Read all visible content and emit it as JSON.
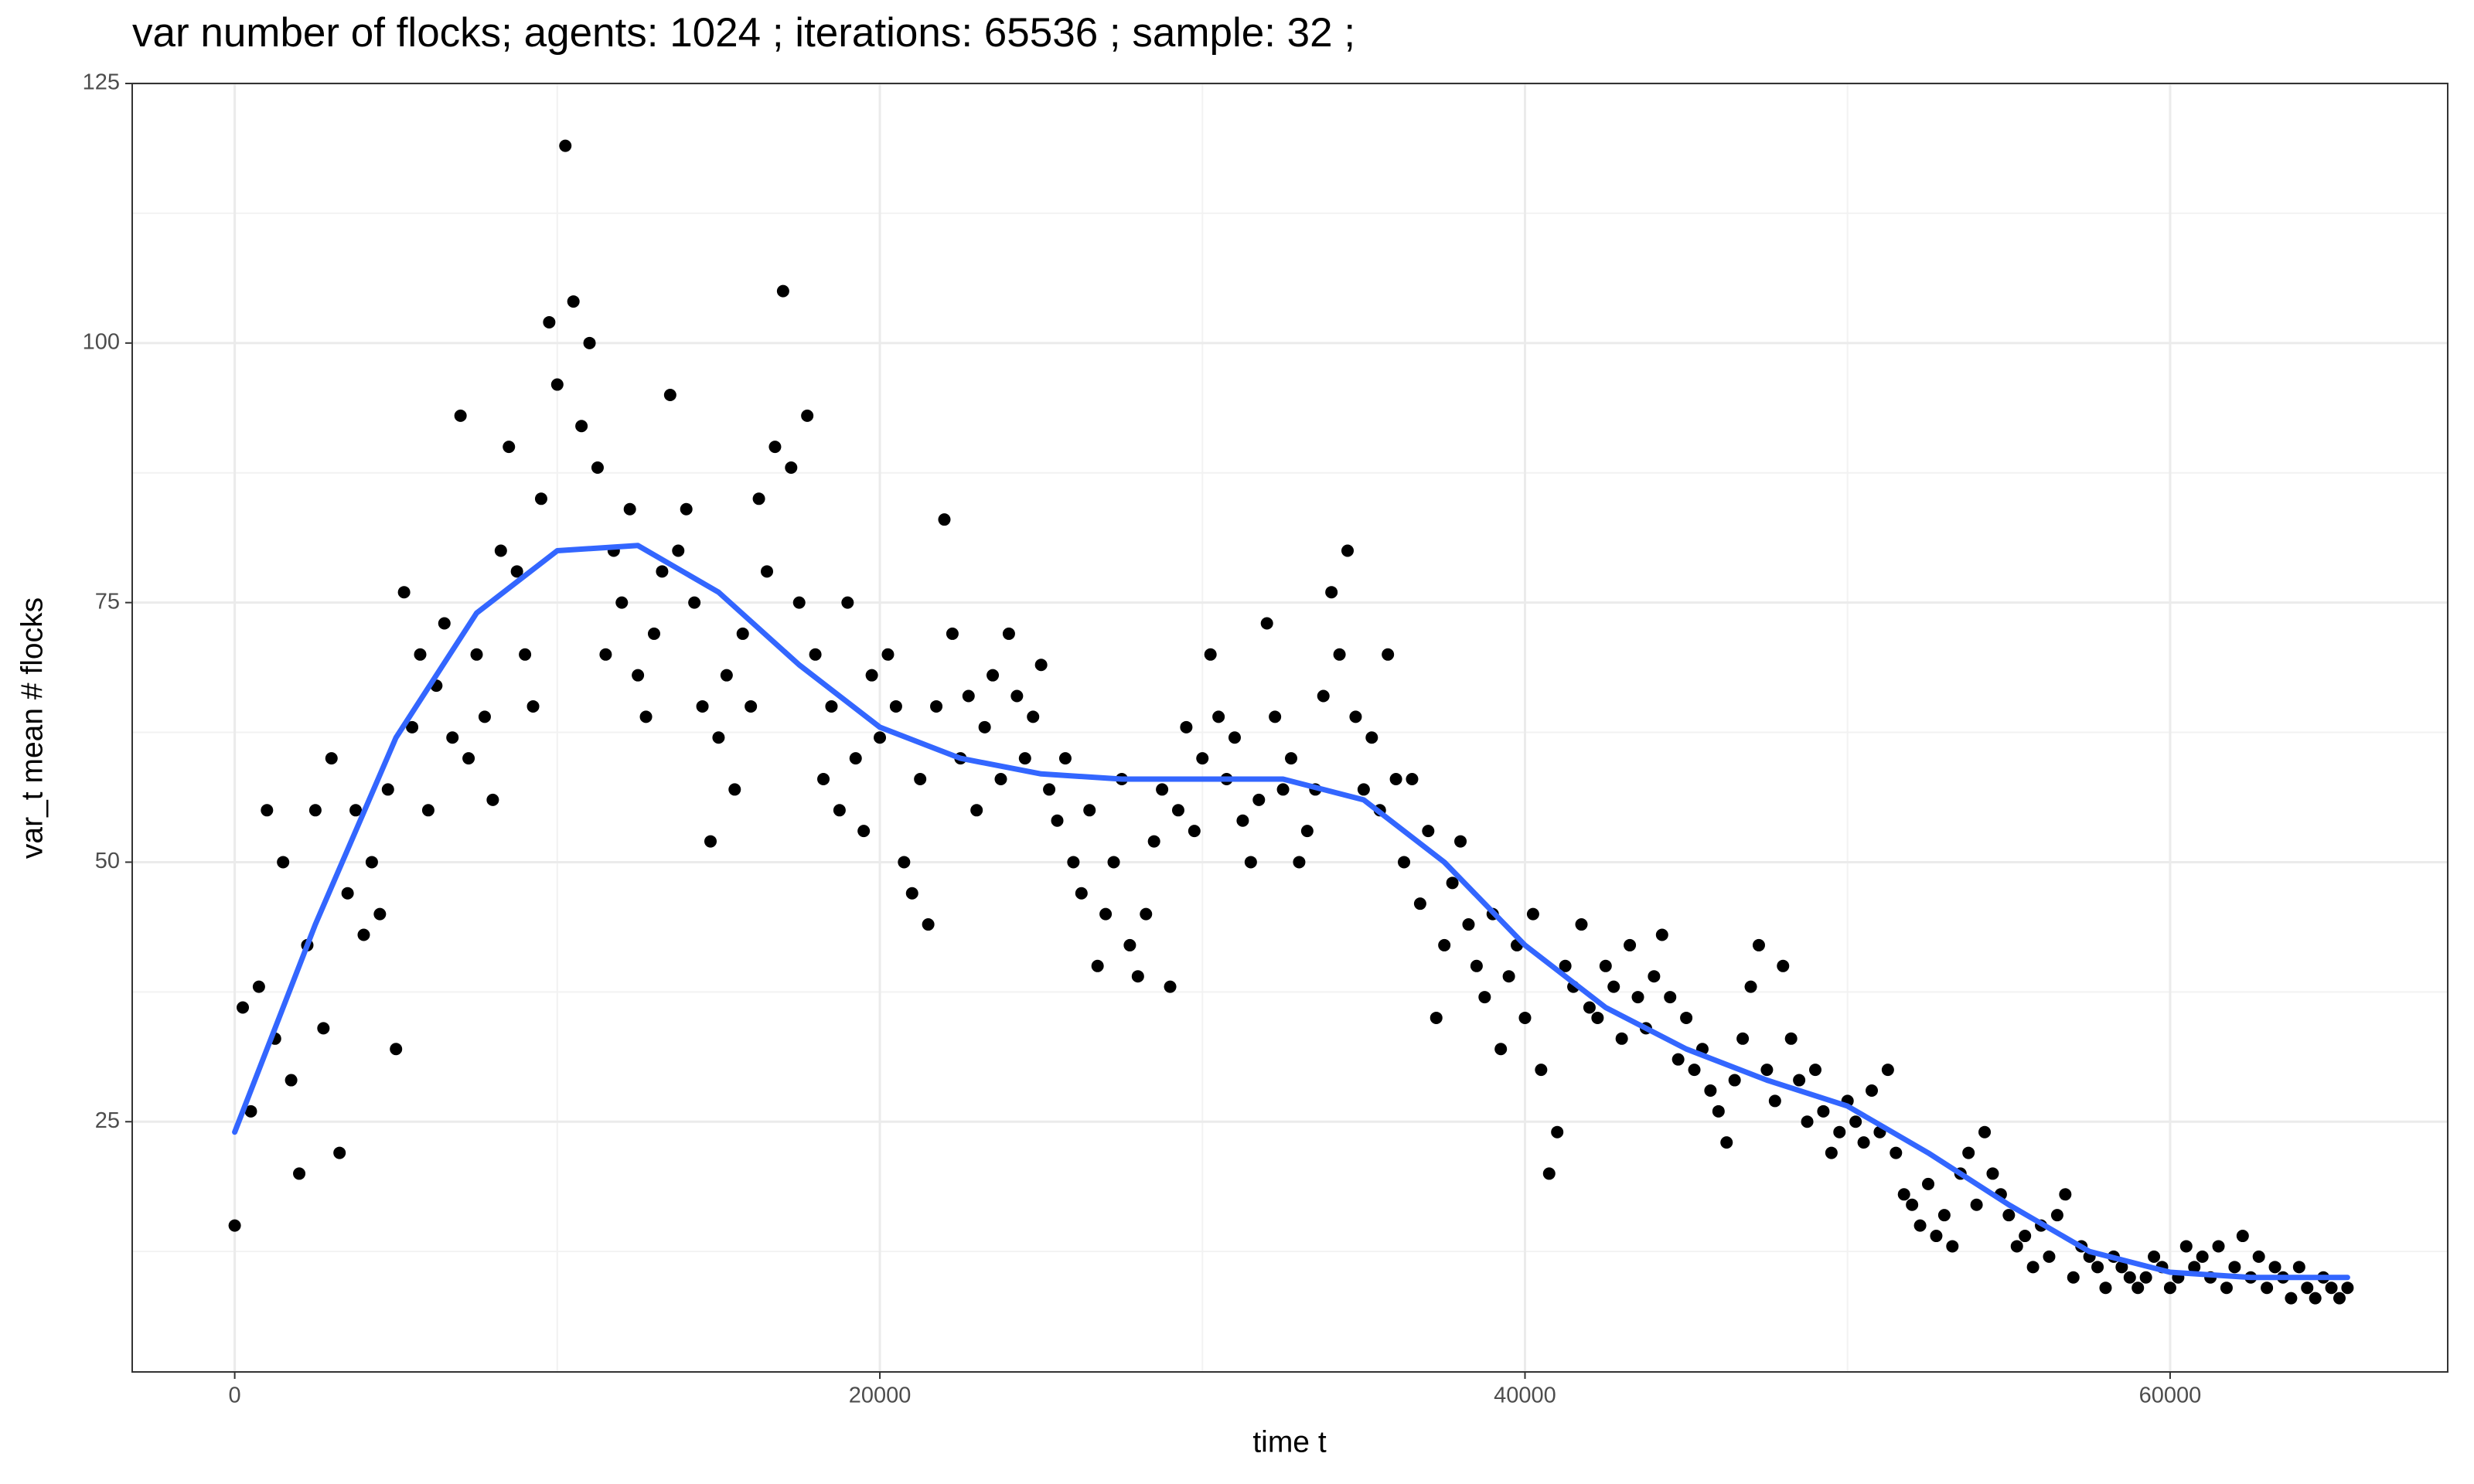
{
  "chart_data": {
    "type": "scatter",
    "title": "var number of flocks; agents: 1024 ; iterations: 65536 ; sample: 32 ;",
    "x_label": "time t",
    "y_label": "var_t mean # flocks",
    "xlim": [
      -3178,
      68606
    ],
    "ylim": [
      0.9,
      125
    ],
    "xticks": [
      0,
      20000,
      40000,
      60000
    ],
    "yticks": [
      25,
      50,
      75,
      100,
      125
    ],
    "x_minor_grid": [
      10000,
      30000,
      50000
    ],
    "y_minor_grid": [
      12.5,
      37.5,
      62.5,
      87.5,
      112.5
    ],
    "grid": true,
    "points": {
      "color": "#000000",
      "x": [
        0,
        250,
        500,
        750,
        1000,
        1250,
        1500,
        1750,
        2000,
        2250,
        2500,
        2750,
        3000,
        3250,
        3500,
        3750,
        4000,
        4250,
        4500,
        4750,
        5000,
        5250,
        5500,
        5750,
        6000,
        6250,
        6500,
        6750,
        7000,
        7250,
        7500,
        7750,
        8000,
        8250,
        8500,
        8750,
        9000,
        9250,
        9500,
        9750,
        10000,
        10250,
        10500,
        10750,
        11000,
        11250,
        11500,
        11750,
        12000,
        12250,
        12500,
        12750,
        13000,
        13250,
        13500,
        13750,
        14000,
        14250,
        14500,
        14750,
        15000,
        15250,
        15500,
        15750,
        16000,
        16250,
        16500,
        16750,
        17000,
        17250,
        17500,
        17750,
        18000,
        18250,
        18500,
        18750,
        19000,
        19250,
        19500,
        19750,
        20000,
        20250,
        20500,
        20750,
        21000,
        21250,
        21500,
        21750,
        22000,
        22250,
        22500,
        22750,
        23000,
        23250,
        23500,
        23750,
        24000,
        24250,
        24500,
        24750,
        25000,
        25250,
        25500,
        25750,
        26000,
        26250,
        26500,
        26750,
        27000,
        27250,
        27500,
        27750,
        28000,
        28250,
        28500,
        28750,
        29000,
        29250,
        29500,
        29750,
        30000,
        30250,
        30500,
        30750,
        31000,
        31250,
        31500,
        31750,
        32000,
        32250,
        32500,
        32750,
        33000,
        33250,
        33500,
        33750,
        34000,
        34250,
        34500,
        34750,
        35000,
        35250,
        35500,
        35750,
        36000,
        36250,
        36500,
        36750,
        37000,
        37250,
        37500,
        37750,
        38000,
        38250,
        38500,
        38750,
        39000,
        39250,
        39500,
        39750,
        40000,
        40250,
        40500,
        40750,
        41000,
        41250,
        41500,
        41750,
        42000,
        42250,
        42500,
        42750,
        43000,
        43250,
        43500,
        43750,
        44000,
        44250,
        44500,
        44750,
        45000,
        45250,
        45500,
        45750,
        46000,
        46250,
        46500,
        46750,
        47000,
        47250,
        47500,
        47750,
        48000,
        48250,
        48500,
        48750,
        49000,
        49250,
        49500,
        49750,
        50000,
        50250,
        50500,
        50750,
        51000,
        51250,
        51500,
        51750,
        52000,
        52250,
        52500,
        52750,
        53000,
        53250,
        53500,
        53750,
        54000,
        54250,
        54500,
        54750,
        55000,
        55250,
        55500,
        55750,
        56000,
        56250,
        56500,
        56750,
        57000,
        57250,
        57500,
        57750,
        58000,
        58250,
        58500,
        58750,
        59000,
        59250,
        59500,
        59750,
        60000,
        60250,
        60500,
        60750,
        61000,
        61250,
        61500,
        61750,
        62000,
        62250,
        62500,
        62750,
        63000,
        63250,
        63500,
        63750,
        64000,
        64250,
        64500,
        64750,
        65000,
        65250,
        65500
      ],
      "y": [
        15,
        36,
        26,
        38,
        55,
        33,
        50,
        29,
        20,
        42,
        55,
        34,
        60,
        22,
        47,
        55,
        43,
        50,
        45,
        57,
        32,
        76,
        63,
        70,
        55,
        67,
        73,
        62,
        93,
        60,
        70,
        64,
        56,
        80,
        90,
        78,
        70,
        65,
        85,
        102,
        96,
        119,
        104,
        92,
        100,
        88,
        70,
        80,
        75,
        84,
        68,
        64,
        72,
        78,
        95,
        80,
        84,
        75,
        65,
        52,
        62,
        68,
        57,
        72,
        65,
        85,
        78,
        90,
        105,
        88,
        75,
        93,
        70,
        58,
        65,
        55,
        75,
        60,
        53,
        68,
        62,
        70,
        65,
        50,
        47,
        58,
        44,
        65,
        83,
        72,
        60,
        66,
        55,
        63,
        68,
        58,
        72,
        66,
        60,
        64,
        69,
        57,
        54,
        60,
        50,
        47,
        55,
        40,
        45,
        50,
        58,
        42,
        39,
        45,
        52,
        57,
        38,
        55,
        63,
        53,
        60,
        70,
        64,
        58,
        62,
        54,
        50,
        56,
        73,
        64,
        57,
        60,
        50,
        53,
        57,
        66,
        76,
        70,
        80,
        64,
        57,
        62,
        55,
        70,
        58,
        50,
        58,
        46,
        53,
        35,
        42,
        48,
        52,
        44,
        40,
        37,
        45,
        32,
        39,
        42,
        35,
        45,
        30,
        20,
        24,
        40,
        38,
        44,
        36,
        35,
        40,
        38,
        33,
        42,
        37,
        34,
        39,
        43,
        37,
        31,
        35,
        30,
        32,
        28,
        26,
        23,
        29,
        33,
        38,
        42,
        30,
        27,
        40,
        33,
        29,
        25,
        30,
        26,
        22,
        24,
        27,
        25,
        23,
        28,
        24,
        30,
        22,
        18,
        17,
        15,
        19,
        14,
        16,
        13,
        20,
        22,
        17,
        24,
        20,
        18,
        16,
        13,
        14,
        11,
        15,
        12,
        16,
        18,
        10,
        13,
        12,
        11,
        9,
        12,
        11,
        10,
        9,
        10,
        12,
        11,
        9,
        10,
        13,
        11,
        12,
        10,
        13,
        9,
        11,
        14,
        10,
        12,
        9,
        11,
        10,
        8,
        11,
        9,
        8,
        10,
        9,
        8,
        9
      ]
    },
    "smooth": {
      "color": "#3366ff",
      "x": [
        0,
        2500,
        5000,
        7500,
        10000,
        12500,
        15000,
        17500,
        20000,
        22500,
        25000,
        27500,
        30000,
        32500,
        35000,
        37500,
        40000,
        42500,
        45000,
        47500,
        50000,
        52500,
        55000,
        57500,
        60000,
        62500,
        65500
      ],
      "y": [
        24,
        44,
        62,
        74,
        80,
        80.5,
        76,
        69,
        63,
        60,
        58.5,
        58,
        58,
        58,
        56,
        50,
        42,
        36,
        32,
        29,
        26.5,
        22,
        17,
        12.5,
        10.5,
        10,
        10
      ]
    }
  }
}
